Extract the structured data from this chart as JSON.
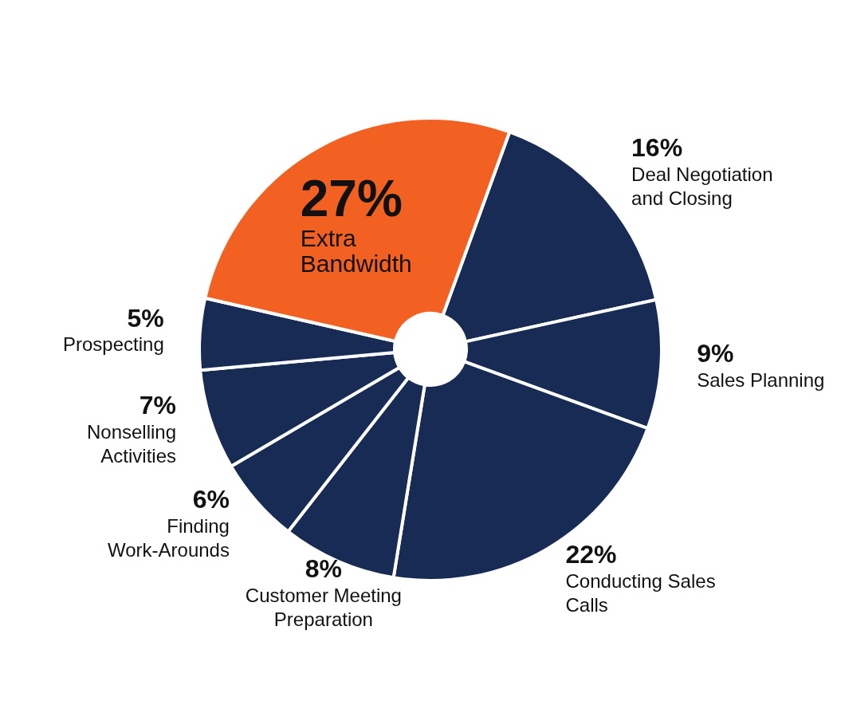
{
  "chart_data": {
    "type": "donut",
    "categories": [
      "Deal Negotiation and Closing",
      "Sales Planning",
      "Conducting Sales Calls",
      "Customer Meeting Preparation",
      "Finding Work-Arounds",
      "Nonselling Activities",
      "Prospecting",
      "Extra Bandwidth"
    ],
    "values": [
      16,
      9,
      22,
      8,
      6,
      7,
      5,
      27
    ],
    "colors": [
      "#172b54",
      "#172b54",
      "#172b54",
      "#172b54",
      "#172b54",
      "#172b54",
      "#172b54",
      "#f26122"
    ],
    "value_labels": [
      "16%",
      "9%",
      "22%",
      "8%",
      "6%",
      "7%",
      "5%",
      "27%"
    ]
  }
}
